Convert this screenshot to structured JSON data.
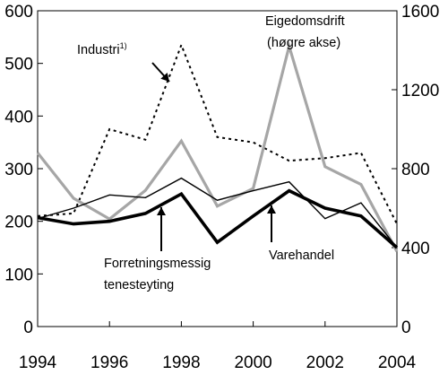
{
  "chart_data": {
    "type": "line",
    "x": [
      1994,
      1995,
      1996,
      1997,
      1998,
      1999,
      2000,
      2001,
      2002,
      2003,
      2004
    ],
    "xlim": [
      1994,
      2004
    ],
    "x_ticks": [
      "1994",
      "1996",
      "1998",
      "2000",
      "2002",
      "2004"
    ],
    "y_left": {
      "lim": [
        0,
        600
      ],
      "ticks": [
        "0",
        "100",
        "200",
        "300",
        "400",
        "500",
        "600"
      ]
    },
    "y_right": {
      "lim": [
        0,
        1600
      ],
      "ticks": [
        "0",
        "400",
        "800",
        "1200",
        "1600"
      ]
    },
    "grid": false,
    "series": [
      {
        "name": "Industri",
        "axis": "left",
        "style": "dotted",
        "color": "#000000",
        "values": [
          210,
          215,
          375,
          355,
          535,
          360,
          350,
          315,
          320,
          330,
          195
        ]
      },
      {
        "name": "Eigedomsdrift",
        "axis": "right",
        "style": "solid-gray",
        "color": "#a6a6a6",
        "values": [
          880,
          650,
          545,
          690,
          940,
          610,
          700,
          1420,
          810,
          720,
          380
        ]
      },
      {
        "name": "Forretningsmessig tenesteyting",
        "axis": "left",
        "style": "solid-thin",
        "color": "#000000",
        "values": [
          205,
          225,
          250,
          245,
          282,
          240,
          258,
          275,
          205,
          235,
          150
        ]
      },
      {
        "name": "Varehandel",
        "axis": "left",
        "style": "solid-thick",
        "color": "#000000",
        "values": [
          207,
          195,
          200,
          215,
          252,
          160,
          210,
          258,
          225,
          210,
          150
        ]
      }
    ],
    "annotations": {
      "industri": {
        "text": "Industri",
        "superscript": "1)"
      },
      "eigedomsdrift": {
        "line1": "Eigedomsdrift",
        "line2": "(høgre akse)"
      },
      "forretning": {
        "line1": "Forretningsmessig",
        "line2": "tenesteyting"
      },
      "varehandel": {
        "text": "Varehandel"
      }
    }
  }
}
